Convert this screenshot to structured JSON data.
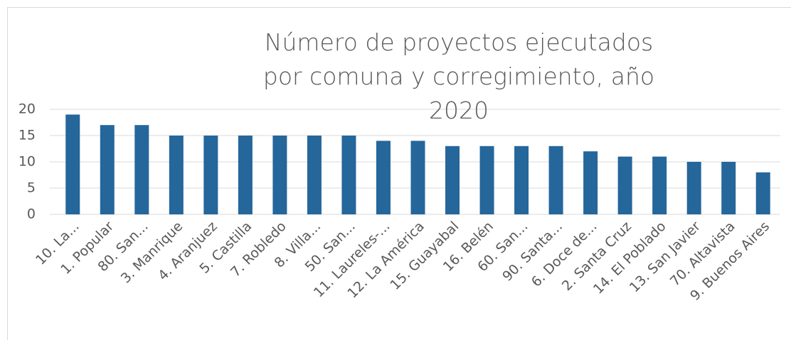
{
  "chart_data": {
    "type": "bar",
    "title": "Número de proyectos ejecutados por comuna y corregimiento, año 2020",
    "categories": [
      "10. La...",
      "1. Popular",
      "80. San...",
      "3. Manrique",
      "4. Aranjuez",
      "5. Castilla",
      "7. Robledo",
      "8. Villa...",
      "50. San...",
      "11. Laureles-...",
      "12. La América",
      "15. Guayabal",
      "16. Belén",
      "60. San...",
      "90. Santa...",
      "6. Doce de...",
      "2. Santa Cruz",
      "14. El Poblado",
      "13. San Javier",
      "70. Altavista",
      "9. Buenos Aires"
    ],
    "values": [
      19,
      17,
      17,
      15,
      15,
      15,
      15,
      15,
      15,
      14,
      14,
      13,
      13,
      13,
      13,
      12,
      11,
      11,
      10,
      10,
      8
    ],
    "color": "#25669b",
    "ylim": [
      0,
      20
    ],
    "yticks": [
      0,
      5,
      10,
      15,
      20
    ],
    "grid": true
  }
}
